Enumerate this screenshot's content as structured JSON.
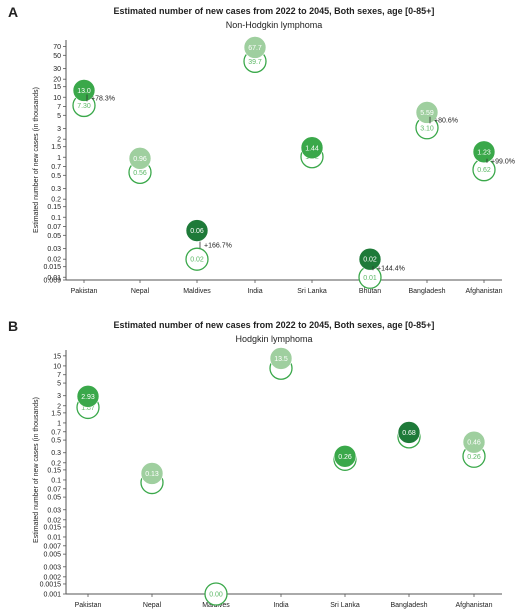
{
  "colors": {
    "y2045_fill": [
      "#3aa84a",
      "#9fcf9f",
      "#1e7a39",
      "#9fcf9f",
      "#3aa84a",
      "#1e7a39",
      "#9fcf9f",
      "#3aa84a"
    ],
    "outline": "#3aa84a",
    "outline_text": "#5cb866",
    "axis": "#555555",
    "text": "#222222"
  },
  "chart_data": [
    {
      "type": "scatter",
      "panel_label": "A",
      "title": "Estimated number of new cases from 2022 to 2045, Both sexes, age [0-85+]",
      "subtitle": "Non-Hodgkin lymphoma",
      "ylabel": "Estimated number of new cases (in thousands)",
      "y_scale": "log",
      "ylim": [
        0.009,
        90
      ],
      "y_ticks": [
        "70",
        "50",
        "30",
        "20",
        "15",
        "10",
        "7",
        "5",
        "3",
        "2",
        "1.5",
        "1",
        "0.7",
        "0.5",
        "0.3",
        "0.2",
        "0.15",
        "0.1",
        "0.07",
        "0.05",
        "0.03",
        "0.02",
        "0.015",
        "0.01",
        "0.009"
      ],
      "y_tick_values": [
        70,
        50,
        30,
        20,
        15,
        10,
        7,
        5,
        3,
        2,
        1.5,
        1,
        0.7,
        0.5,
        0.3,
        0.2,
        0.15,
        0.1,
        0.07,
        0.05,
        0.03,
        0.02,
        0.015,
        0.01,
        0.009
      ],
      "categories": [
        "Pakistan",
        "Nepal",
        "Maldives",
        "India",
        "Sri Lanka",
        "Bhutan",
        "Bangladesh",
        "Afghanistan"
      ],
      "series": [
        {
          "values": [
            7.3,
            0.56,
            0.02,
            39.7,
            1.02,
            0.01,
            3.1,
            0.62
          ],
          "labels": [
            "7.30",
            "0.56",
            "0.02",
            "39.7",
            "1.02",
            "0.01",
            "3.10",
            "0.62"
          ]
        },
        {
          "values": [
            13.0,
            0.96,
            0.06,
            67.7,
            1.44,
            0.02,
            5.59,
            1.23
          ],
          "labels": [
            "13.0",
            "0.96",
            "0.06",
            "67.7",
            "1.44",
            "0.02",
            "5.59",
            "1.23"
          ]
        }
      ],
      "annotations": [
        {
          "category": "Pakistan",
          "text": "+78.3%"
        },
        {
          "category": "Maldives",
          "text": "+166.7%"
        },
        {
          "category": "Bhutan",
          "text": "+144.4%"
        },
        {
          "category": "Bangladesh",
          "text": "+80.6%"
        },
        {
          "category": "Afghanistan",
          "text": "+99.0%"
        }
      ]
    },
    {
      "type": "scatter",
      "panel_label": "B",
      "title": "Estimated number of new cases from 2022 to 2045, Both sexes, age [0-85+]",
      "subtitle": "Hodgkin lymphoma",
      "ylabel": "Estimated number of new cases (in thousands)",
      "y_scale": "log",
      "ylim": [
        0.001,
        19
      ],
      "y_ticks": [
        "15",
        "10",
        "7",
        "5",
        "3",
        "2",
        "1.5",
        "1",
        "0.7",
        "0.5",
        "0.3",
        "0.2",
        "0.15",
        "0.1",
        "0.07",
        "0.05",
        "0.03",
        "0.02",
        "0.015",
        "0.01",
        "0.007",
        "0.005",
        "0.003",
        "0.002",
        "0.0015",
        "0.001"
      ],
      "y_tick_values": [
        15,
        10,
        7,
        5,
        3,
        2,
        1.5,
        1,
        0.7,
        0.5,
        0.3,
        0.2,
        0.15,
        0.1,
        0.07,
        0.05,
        0.03,
        0.02,
        0.015,
        0.01,
        0.007,
        0.005,
        0.003,
        0.002,
        0.0015,
        0.001
      ],
      "categories": [
        "Pakistan",
        "Nepal",
        "Maldives",
        "India",
        "Sri Lanka",
        "Bangladesh",
        "Afghanistan"
      ],
      "series": [
        {
          "values": [
            1.87,
            0.09,
            0.001,
            9.1,
            0.23,
            0.57,
            0.26
          ],
          "labels": [
            "1.87",
            "",
            "0.00",
            "",
            "",
            "",
            "0.26"
          ]
        },
        {
          "values": [
            2.93,
            0.13,
            null,
            13.5,
            0.26,
            0.68,
            0.46
          ],
          "labels": [
            "2.93",
            "0.13",
            "",
            "13.5",
            "0.26",
            "0.68",
            "0.46"
          ]
        }
      ],
      "annotations": []
    }
  ]
}
